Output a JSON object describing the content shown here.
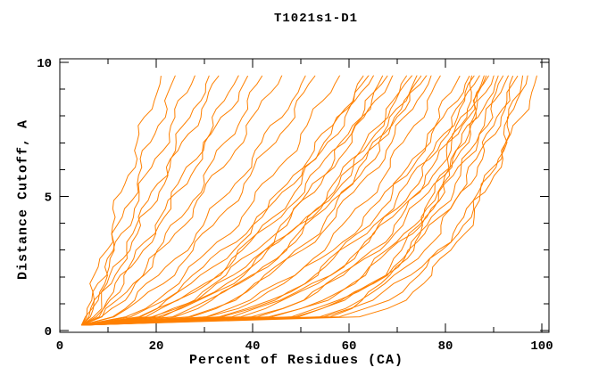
{
  "window": {
    "background": "#ffffff"
  },
  "chart_data": {
    "type": "line",
    "title": "T1021s1-D1",
    "xlabel": "Percent of Residues (CA)",
    "ylabel": "Distance Cutoff, A",
    "xlim": [
      0,
      100
    ],
    "ylim": [
      0,
      10
    ],
    "x_major_ticks": [
      0,
      20,
      40,
      60,
      80,
      100
    ],
    "x_minor_ticks": [
      10,
      30,
      50,
      70,
      90
    ],
    "y_major_ticks": [
      0,
      5,
      10
    ],
    "y_minor_ticks": [
      1,
      2,
      3,
      4,
      6,
      7,
      8,
      9
    ],
    "grid": false,
    "legend": false,
    "line_color": "#ff8000",
    "axis_color": "#000000",
    "description": "Each curve is one predicted model: percent of CA residues (x) fitting under a distance cutoff in Angstroms (y). All curves start near (4.5%, 0.2 A) and are clipped at 9.5 A.",
    "series_origin": [
      4.5,
      0.2
    ],
    "cutoff_levels": [
      0.3,
      1,
      2,
      3.5,
      5,
      6.5,
      8,
      9.5
    ],
    "series_percent_at_cutoff": [
      [
        5.3,
        6.2,
        7.7,
        10.1,
        12.6,
        15.3,
        18.1,
        21
      ],
      [
        5.5,
        6.8,
        8.7,
        11.7,
        14.7,
        17.8,
        20.9,
        24
      ],
      [
        5.5,
        6.9,
        9.1,
        12.7,
        16.3,
        20.2,
        24.1,
        28
      ],
      [
        6.0,
        8.1,
        10.9,
        15.1,
        19.1,
        23.1,
        27.1,
        31
      ],
      [
        5.9,
        7.9,
        10.9,
        15.3,
        19.7,
        24.2,
        28.6,
        33
      ],
      [
        6.7,
        9.7,
        13.4,
        18.7,
        23.6,
        28.1,
        32.7,
        37
      ],
      [
        6.5,
        9.5,
        13.4,
        18.8,
        24.0,
        29.1,
        34.1,
        39
      ],
      [
        7.8,
        11.8,
        16.5,
        22.5,
        27.8,
        32.8,
        37.5,
        42
      ],
      [
        7.6,
        11.8,
        16.8,
        23.4,
        29.5,
        35.2,
        40.7,
        46
      ],
      [
        9.1,
        14.5,
        20.4,
        27.9,
        34.3,
        40.3,
        45.8,
        51
      ],
      [
        10.1,
        16.1,
        22.4,
        30.1,
        36.5,
        42.5,
        47.9,
        53
      ],
      [
        11.7,
        18.7,
        25.8,
        34.1,
        41.0,
        47.2,
        52.8,
        58
      ],
      [
        13.7,
        21.8,
        29.6,
        38.5,
        45.7,
        52.1,
        57.8,
        63
      ],
      [
        15.5,
        24.1,
        32.0,
        40.8,
        47.8,
        53.8,
        59.2,
        64
      ],
      [
        12.1,
        19.9,
        27.8,
        37.3,
        45.3,
        52.4,
        58.9,
        65
      ],
      [
        18.1,
        27.5,
        35.8,
        44.7,
        51.5,
        57.3,
        62.4,
        67
      ],
      [
        14.5,
        23.3,
        31.7,
        41.4,
        49.2,
        56.2,
        62.3,
        68
      ],
      [
        16.4,
        25.7,
        34.3,
        43.8,
        51.4,
        57.9,
        63.7,
        69
      ],
      [
        20.7,
        31.0,
        39.8,
        49.1,
        56.2,
        62.2,
        67.3,
        72
      ],
      [
        17.9,
        28.1,
        37.2,
        47.2,
        55.0,
        61.7,
        67.6,
        73
      ],
      [
        23.6,
        34.3,
        43.2,
        52.2,
        59.0,
        64.8,
        69.6,
        74
      ],
      [
        19.8,
        30.4,
        39.7,
        49.8,
        57.5,
        64.1,
        69.8,
        75
      ],
      [
        16.8,
        27.0,
        36.5,
        47.2,
        55.8,
        63.2,
        70.0,
        76
      ],
      [
        23.1,
        34.2,
        43.6,
        53.2,
        60.6,
        66.9,
        72.2,
        77
      ],
      [
        27.1,
        38.7,
        47.8,
        57.2,
        64.1,
        69.8,
        74.6,
        79
      ],
      [
        30.7,
        43.0,
        52.3,
        61.6,
        68.5,
        74.1,
        78.8,
        83
      ],
      [
        26.5,
        39.0,
        49.2,
        59.7,
        67.6,
        74.3,
        80.0,
        85
      ],
      [
        33.8,
        46.2,
        55.7,
        65.0,
        71.8,
        77.3,
        81.9,
        86
      ],
      [
        29.4,
        42.3,
        52.5,
        62.8,
        70.4,
        76.8,
        82.2,
        87
      ],
      [
        36.5,
        49.2,
        58.5,
        67.7,
        74.3,
        79.6,
        84.1,
        88
      ],
      [
        31.9,
        45.0,
        55.2,
        65.4,
        72.9,
        79.2,
        84.3,
        89
      ],
      [
        40.7,
        53.5,
        62.5,
        71.2,
        77.3,
        82.3,
        86.4,
        90
      ],
      [
        35.5,
        48.8,
        58.8,
        68.7,
        76.0,
        81.7,
        86.7,
        91
      ],
      [
        45.7,
        58.0,
        66.8,
        74.9,
        80.5,
        85.0,
        88.8,
        92
      ],
      [
        39.6,
        52.9,
        62.7,
        72.1,
        79.0,
        84.5,
        89.0,
        93
      ],
      [
        49.6,
        61.7,
        70.1,
        77.8,
        83.2,
        87.5,
        91.0,
        94
      ],
      [
        44.2,
        57.5,
        66.9,
        75.8,
        82.1,
        87.2,
        91.4,
        95
      ],
      [
        54.4,
        66.4,
        74.5,
        81.8,
        87.0,
        90.9,
        94.1,
        97
      ],
      [
        50.5,
        63.6,
        72.8,
        81.2,
        87.2,
        91.9,
        95.7,
        99
      ],
      [
        46.8,
        58.2,
        66.1,
        73.3,
        78.4,
        82.4,
        85.6,
        88.5
      ],
      [
        59.2,
        69.9,
        76.9,
        83.3,
        87.6,
        90.9,
        93.6,
        96
      ],
      [
        53.0,
        62.4,
        68.6,
        74.3,
        78.1,
        81.0,
        83.9,
        85.5
      ]
    ]
  }
}
